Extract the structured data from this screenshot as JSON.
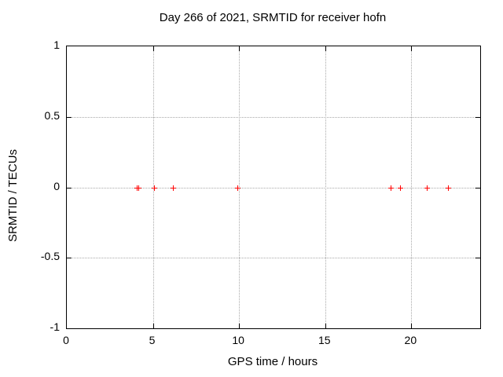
{
  "chart_data": {
    "type": "scatter",
    "title": "Day 266 of 2021, SRMTID for receiver hofn",
    "xlabel": "GPS time / hours",
    "ylabel": "SRMTID / TECUs",
    "xlim": [
      0,
      24
    ],
    "ylim": [
      -1,
      1
    ],
    "xticks": {
      "values": [
        0,
        5,
        10,
        15,
        20
      ],
      "labels": [
        "0",
        "5",
        "10",
        "15",
        "20"
      ]
    },
    "yticks": {
      "values": [
        1,
        0.5,
        0,
        -0.5,
        -1
      ],
      "labels": [
        "1",
        "0.5",
        "0",
        "-0.5",
        "-1"
      ]
    },
    "grid": true,
    "legend": "none",
    "series": [
      {
        "name": "SRMTID",
        "marker": "plus",
        "color": "#ff0000",
        "points": [
          [
            4.08,
            0
          ],
          [
            4.13,
            0
          ],
          [
            5.06,
            0
          ],
          [
            6.16,
            0
          ],
          [
            9.9,
            0
          ],
          [
            18.8,
            0
          ],
          [
            19.33,
            0
          ],
          [
            20.91,
            0
          ],
          [
            22.14,
            0
          ]
        ]
      }
    ]
  },
  "colors": {
    "background": "#ffffff",
    "plot_border": "#000000",
    "grid": "#a9a9a9",
    "text": "#000000",
    "marker": "#ff0000"
  }
}
